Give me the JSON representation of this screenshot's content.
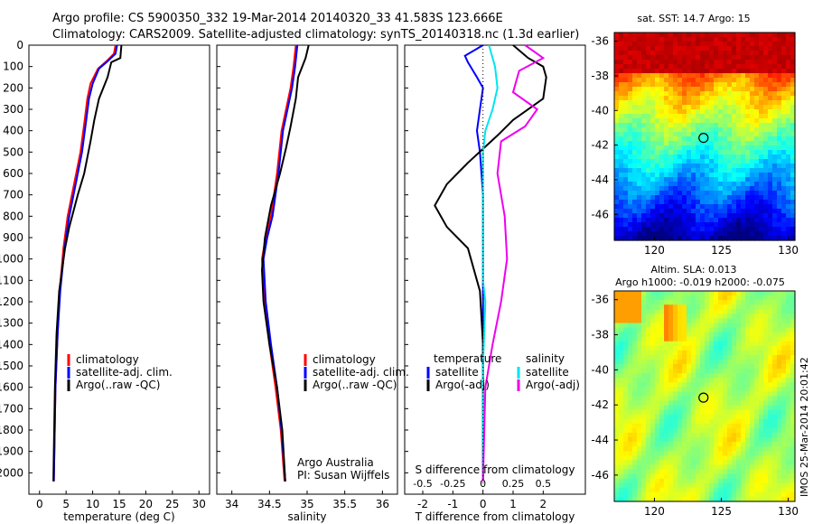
{
  "header": {
    "line1": "Argo profile: CS 5900350_332 19-Mar-2014 20140320_33 41.583S 123.666E",
    "line2": "Climatology: CARS2009. Satellite-adjusted climatology: synTS_20140318.nc (1.3d earlier)"
  },
  "colors": {
    "climatology": "#ff0000",
    "satellite": "#0000ff",
    "argo": "#000000",
    "sal_satellite": "#00e5ee",
    "sal_argo": "#ee00ee"
  },
  "footer_stamp": "IMOS 25-Mar-2014 20:01:42",
  "chart_data": [
    {
      "id": "temperature",
      "type": "line",
      "xlabel": "temperature (deg C)",
      "xlim": [
        -2,
        32
      ],
      "xticks": [
        0,
        5,
        10,
        15,
        20,
        25,
        30
      ],
      "ylim": [
        2100,
        0
      ],
      "yticks": [
        0,
        100,
        200,
        300,
        400,
        500,
        600,
        700,
        800,
        900,
        1000,
        1100,
        1200,
        1300,
        1400,
        1500,
        1600,
        1700,
        1800,
        1900,
        2000
      ],
      "legend": [
        "climatology",
        "satellite-adj. clim.",
        "Argo(..raw -QC)"
      ],
      "series": [
        {
          "name": "climatology",
          "color": "#ff0000",
          "points": [
            [
              14.3,
              0
            ],
            [
              14.0,
              40
            ],
            [
              12.8,
              70
            ],
            [
              11.0,
              110
            ],
            [
              9.6,
              180
            ],
            [
              9.0,
              250
            ],
            [
              8.5,
              350
            ],
            [
              7.7,
              500
            ],
            [
              6.5,
              650
            ],
            [
              5.3,
              800
            ],
            [
              4.5,
              950
            ],
            [
              3.8,
              1150
            ],
            [
              3.4,
              1350
            ],
            [
              3.0,
              1600
            ],
            [
              2.8,
              1900
            ],
            [
              2.7,
              2040
            ]
          ]
        },
        {
          "name": "satellite-adj. clim.",
          "color": "#0000ff",
          "points": [
            [
              14.6,
              0
            ],
            [
              14.3,
              40
            ],
            [
              12.6,
              80
            ],
            [
              11.2,
              110
            ],
            [
              10.0,
              180
            ],
            [
              9.3,
              250
            ],
            [
              8.8,
              350
            ],
            [
              8.0,
              500
            ],
            [
              6.8,
              650
            ],
            [
              5.6,
              800
            ],
            [
              4.7,
              950
            ],
            [
              3.9,
              1150
            ],
            [
              3.4,
              1350
            ],
            [
              3.0,
              1600
            ],
            [
              2.8,
              1900
            ],
            [
              2.7,
              2040
            ]
          ]
        },
        {
          "name": "Argo(..raw -QC)",
          "color": "#000000",
          "points": [
            [
              15.4,
              0
            ],
            [
              15.2,
              60
            ],
            [
              13.5,
              80
            ],
            [
              12.8,
              150
            ],
            [
              11.2,
              250
            ],
            [
              10.3,
              350
            ],
            [
              9.6,
              450
            ],
            [
              8.4,
              600
            ],
            [
              7.2,
              700
            ],
            [
              5.6,
              850
            ],
            [
              4.8,
              950
            ],
            [
              3.7,
              1150
            ],
            [
              3.2,
              1350
            ],
            [
              2.9,
              1600
            ],
            [
              2.7,
              1900
            ],
            [
              2.6,
              2040
            ]
          ]
        }
      ]
    },
    {
      "id": "salinity",
      "type": "line",
      "xlabel": "salinity",
      "xlim": [
        33.8,
        36.2
      ],
      "xticks": [
        34,
        34.5,
        35,
        35.5,
        36
      ],
      "ylim": [
        2100,
        0
      ],
      "legend": [
        "climatology",
        "satellite-adj. clim.",
        "Argo(..raw -QC)"
      ],
      "annotation": [
        "Argo Australia",
        "PI: Susan Wijffels"
      ],
      "series": [
        {
          "name": "climatology",
          "color": "#ff0000",
          "points": [
            [
              34.85,
              0
            ],
            [
              34.82,
              100
            ],
            [
              34.78,
              200
            ],
            [
              34.72,
              300
            ],
            [
              34.66,
              400
            ],
            [
              34.6,
              600
            ],
            [
              34.52,
              800
            ],
            [
              34.45,
              900
            ],
            [
              34.4,
              1000
            ],
            [
              34.43,
              1200
            ],
            [
              34.5,
              1400
            ],
            [
              34.58,
              1600
            ],
            [
              34.65,
              1800
            ],
            [
              34.7,
              2040
            ]
          ]
        },
        {
          "name": "satellite-adj. clim.",
          "color": "#0000ff",
          "points": [
            [
              34.87,
              0
            ],
            [
              34.84,
              100
            ],
            [
              34.8,
              200
            ],
            [
              34.74,
              300
            ],
            [
              34.68,
              400
            ],
            [
              34.62,
              600
            ],
            [
              34.54,
              800
            ],
            [
              34.47,
              900
            ],
            [
              34.42,
              1000
            ],
            [
              34.45,
              1200
            ],
            [
              34.52,
              1400
            ],
            [
              34.6,
              1600
            ],
            [
              34.66,
              1800
            ],
            [
              34.71,
              2040
            ]
          ]
        },
        {
          "name": "Argo(..raw -QC)",
          "color": "#000000",
          "points": [
            [
              35.02,
              0
            ],
            [
              34.98,
              60
            ],
            [
              34.88,
              150
            ],
            [
              34.85,
              250
            ],
            [
              34.78,
              380
            ],
            [
              34.72,
              480
            ],
            [
              34.64,
              600
            ],
            [
              34.52,
              750
            ],
            [
              34.44,
              900
            ],
            [
              34.4,
              1050
            ],
            [
              34.42,
              1200
            ],
            [
              34.5,
              1400
            ],
            [
              34.6,
              1600
            ],
            [
              34.67,
              1800
            ],
            [
              34.71,
              2040
            ]
          ]
        }
      ]
    },
    {
      "id": "difference",
      "type": "line",
      "xlabel": "T difference from climatology",
      "toplabel": "S difference from climatology",
      "xlim": [
        -2.6,
        3.4
      ],
      "xticks": [
        -2,
        -1,
        0,
        1,
        2
      ],
      "sticks": [
        -0.5,
        -0.25,
        0,
        0.25,
        0.5
      ],
      "ylim": [
        2100,
        0
      ],
      "legend_temperature_title": "temperature",
      "legend_salinity_title": "salinity",
      "legend_temperature": [
        "satellite",
        "Argo(-adj)"
      ],
      "legend_salinity": [
        "satellite",
        "Argo(-adj)"
      ],
      "series": [
        {
          "name": "T satellite",
          "color": "#0000ff",
          "points": [
            [
              0,
              0
            ],
            [
              -0.6,
              50
            ],
            [
              -0.5,
              80
            ],
            [
              -0.2,
              150
            ],
            [
              0,
              200
            ],
            [
              -0.1,
              300
            ],
            [
              -0.2,
              400
            ],
            [
              -0.1,
              500
            ],
            [
              0,
              700
            ],
            [
              0,
              2040
            ]
          ]
        },
        {
          "name": "T Argo(-adj)",
          "color": "#000000",
          "points": [
            [
              1,
              0
            ],
            [
              1.5,
              60
            ],
            [
              2.0,
              100
            ],
            [
              2.1,
              150
            ],
            [
              2.0,
              250
            ],
            [
              1.0,
              350
            ],
            [
              0.5,
              420
            ],
            [
              -0.5,
              550
            ],
            [
              -1.2,
              650
            ],
            [
              -1.6,
              750
            ],
            [
              -1.2,
              850
            ],
            [
              -0.5,
              950
            ],
            [
              -0.1,
              1150
            ],
            [
              0,
              1400
            ],
            [
              0,
              2040
            ]
          ]
        },
        {
          "name": "S satellite",
          "color": "#00e5ee",
          "points": [
            [
              0.05,
              0
            ],
            [
              0.1,
              100
            ],
            [
              0.12,
              200
            ],
            [
              0.08,
              300
            ],
            [
              0.02,
              400
            ],
            [
              0,
              500
            ],
            [
              0,
              1100
            ],
            [
              0.02,
              1200
            ],
            [
              0,
              1500
            ],
            [
              0,
              2040
            ]
          ]
        },
        {
          "name": "S Argo(-adj)",
          "color": "#ee00ee",
          "points": [
            [
              0.35,
              0
            ],
            [
              0.5,
              60
            ],
            [
              0.3,
              120
            ],
            [
              0.25,
              220
            ],
            [
              0.45,
              300
            ],
            [
              0.35,
              380
            ],
            [
              0.15,
              450
            ],
            [
              0.12,
              600
            ],
            [
              0.18,
              800
            ],
            [
              0.2,
              1000
            ],
            [
              0.15,
              1200
            ],
            [
              0.08,
              1400
            ],
            [
              0.02,
              1600
            ],
            [
              0,
              2040
            ]
          ]
        }
      ]
    },
    {
      "id": "sst_map",
      "type": "heatmap",
      "title": "sat. SST: 14.7 Argo: 15",
      "xticks": [
        120,
        125,
        130
      ],
      "yticks": [
        -36,
        -38,
        -40,
        -42,
        -44,
        -46
      ],
      "xlim": [
        117,
        130.5
      ],
      "ylim": [
        -47.5,
        -35.5
      ],
      "marker": [
        123.666,
        -41.583
      ]
    },
    {
      "id": "sla_map",
      "type": "heatmap",
      "title": "Altim. SLA: 0.013",
      "subtitle": "Argo h1000: -0.019 h2000: -0.075",
      "xticks": [
        120,
        125,
        130
      ],
      "yticks": [
        -36,
        -38,
        -40,
        -42,
        -44,
        -46
      ],
      "xlim": [
        117,
        130.5
      ],
      "ylim": [
        -47.5,
        -35.5
      ],
      "marker": [
        123.666,
        -41.583
      ]
    }
  ]
}
